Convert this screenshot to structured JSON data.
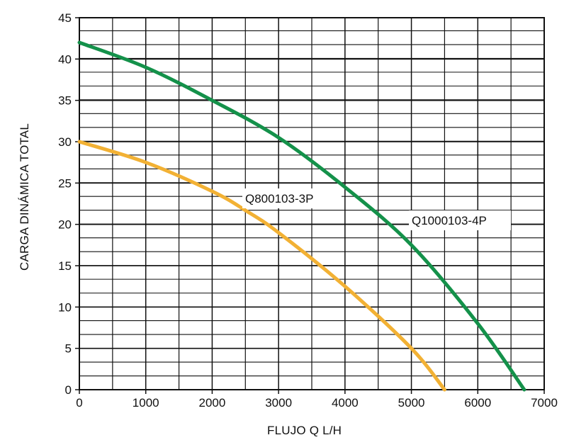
{
  "chart_data": {
    "type": "line",
    "xlabel": "FLUJO Q L/H",
    "ylabel": "CARGA DINÁMICA TOTAL",
    "xlim": [
      0,
      7000
    ],
    "ylim": [
      0,
      45
    ],
    "x_ticks": [
      0,
      1000,
      2000,
      3000,
      4000,
      5000,
      6000,
      7000
    ],
    "y_ticks": [
      0,
      5,
      10,
      15,
      20,
      25,
      30,
      35,
      40,
      45
    ],
    "x_tick_labels": [
      "0",
      "1000",
      "2000",
      "3000",
      "4000",
      "5000",
      "6000",
      "7000"
    ],
    "y_tick_labels": [
      "0",
      "5",
      "10",
      "15",
      "20",
      "25",
      "30",
      "35",
      "40",
      "45"
    ],
    "grid": true,
    "grid_minor": {
      "x_step": 500,
      "y_step": 1.67
    },
    "series": [
      {
        "name": "Q800103-3P",
        "color": "#f2b134",
        "x": [
          0,
          1000,
          2000,
          2500,
          3000,
          4000,
          5000,
          5500
        ],
        "y": [
          30,
          27.5,
          24,
          21.7,
          19,
          12.5,
          5,
          0
        ]
      },
      {
        "name": "Q1000103-4P",
        "color": "#14914a",
        "x": [
          0,
          1000,
          2000,
          3000,
          4000,
          5000,
          6000,
          6700
        ],
        "y": [
          42,
          39,
          35,
          30.5,
          24.5,
          17.5,
          8,
          0
        ]
      }
    ]
  }
}
